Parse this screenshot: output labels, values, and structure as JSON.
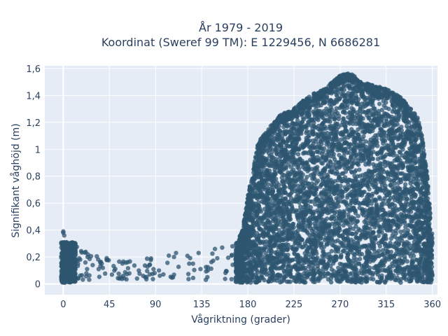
{
  "chart_data": {
    "type": "scatter",
    "title_lines": [
      "År 1979 - 2019",
      "Koordinat (Sweref 99 TM): E 1229456, N 6686281"
    ],
    "xlabel": "Vågriktning (grader)",
    "ylabel": "Signifikant våghöjd (m)",
    "xlim": [
      -18,
      365
    ],
    "ylim": [
      -0.08,
      1.62
    ],
    "x_ticks": [
      0,
      45,
      90,
      135,
      180,
      225,
      270,
      315,
      360
    ],
    "x_tick_labels": [
      "0",
      "45",
      "90",
      "135",
      "180",
      "225",
      "270",
      "315",
      "360"
    ],
    "y_ticks": [
      0,
      0.2,
      0.4,
      0.6,
      0.8,
      1,
      1.2,
      1.4,
      1.6
    ],
    "y_tick_labels": [
      "0",
      "0,2",
      "0,4",
      "0,6",
      "0,8",
      "1",
      "1,2",
      "1,4",
      "1,6"
    ],
    "grid": true,
    "marker_color": "#2e5570",
    "plot_bg": "#e5ecf6",
    "envelope": {
      "x": [
        0,
        10,
        30,
        60,
        90,
        135,
        165,
        175,
        180,
        190,
        200,
        210,
        225,
        240,
        255,
        270,
        280,
        290,
        300,
        315,
        330,
        345,
        350,
        355,
        360
      ],
      "ymax": [
        0.38,
        0.28,
        0.2,
        0.16,
        0.2,
        0.2,
        0.25,
        0.4,
        0.65,
        1.05,
        1.15,
        1.25,
        1.3,
        1.4,
        1.45,
        1.55,
        1.57,
        1.5,
        1.48,
        1.45,
        1.38,
        1.25,
        1.1,
        0.8,
        0.35
      ]
    }
  }
}
